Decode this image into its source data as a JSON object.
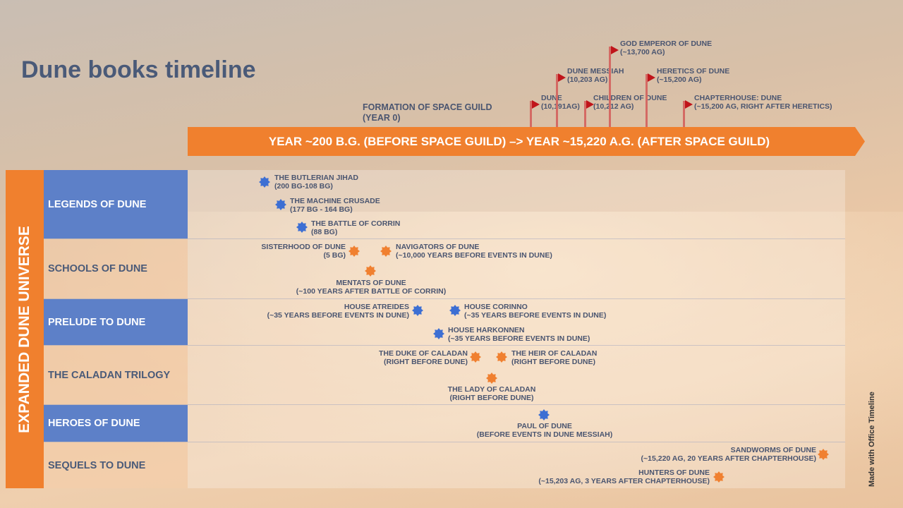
{
  "title": "Dune books timeline",
  "guild_label": [
    "FORMATION OF SPACE GUILD",
    "(YEAR 0)"
  ],
  "timeline_bar": "YEAR ~200 B.G. (BEFORE SPACE GUILD) –> YEAR ~15,220 A.G. (AFTER SPACE GUILD)",
  "flags": [
    {
      "title": "DUNE",
      "sub": "(10,191AG)"
    },
    {
      "title": "DUNE MESSIAH",
      "sub": "(10,203 AG)"
    },
    {
      "title": "CHILDREN OF DUNE",
      "sub": "(10,212 AG)"
    },
    {
      "title": "GOD EMPEROR OF DUNE",
      "sub": "(~13,700 AG)"
    },
    {
      "title": "HERETICS OF DUNE",
      "sub": "(~15,200 AG)"
    },
    {
      "title": "CHAPTERHOUSE: DUNE",
      "sub": "(~15,200 AG, RIGHT AFTER HERETICS)"
    }
  ],
  "side_label": "EXPANDED DUNE UNIVERSE",
  "lanes": [
    "LEGENDS OF DUNE",
    "SCHOOLS OF DUNE",
    "PRELUDE TO DUNE",
    "THE CALADAN TRILOGY",
    "HEROES OF DUNE",
    "SEQUELS TO DUNE"
  ],
  "milestones": [
    {
      "title": "THE BUTLERIAN JIHAD",
      "sub": "(200 BG-108 BG)"
    },
    {
      "title": "THE MACHINE CRUSADE",
      "sub": "(177 BG - 164 BG)"
    },
    {
      "title": "THE BATTLE OF CORRIN",
      "sub": "(88 BG)"
    },
    {
      "title": "SISTERHOOD OF DUNE",
      "sub": "(5 BG)"
    },
    {
      "title": "NAVIGATORS OF DUNE",
      "sub": "(~10,000 YEARS BEFORE EVENTS IN DUNE)"
    },
    {
      "title": "MENTATS OF DUNE",
      "sub": "(~100 YEARS AFTER BATTLE OF CORRIN)"
    },
    {
      "title": "HOUSE ATREIDES",
      "sub": "(~35 YEARS BEFORE EVENTS IN DUNE)"
    },
    {
      "title": "HOUSE CORINNO",
      "sub": "(~35 YEARS BEFORE EVENTS IN DUNE)"
    },
    {
      "title": "HOUSE HARKONNEN",
      "sub": "(~35 YEARS BEFORE EVENTS IN DUNE)"
    },
    {
      "title": "THE DUKE OF CALADAN",
      "sub": "(RIGHT BEFORE DUNE)"
    },
    {
      "title": "THE HEIR OF CALADAN",
      "sub": "(RIGHT BEFORE DUNE)"
    },
    {
      "title": "THE LADY OF CALADAN",
      "sub": "(RIGHT BEFORE DUNE)"
    },
    {
      "title": "PAUL OF DUNE",
      "sub": "(BEFORE EVENTS IN DUNE MESSIAH)"
    },
    {
      "title": "SANDWORMS OF DUNE",
      "sub": "(~15,220 AG, 20 YEARS AFTER CHAPTERHOUSE)"
    },
    {
      "title": "HUNTERS OF DUNE",
      "sub": "(~15,203 AG, 3 YEARS AFTER CHAPTERHOUSE)"
    }
  ],
  "colors": {
    "blue": "#3d6fd3",
    "orange": "#f08030",
    "flag": "#c0141a"
  },
  "watermark": "Made with  Office Timeline"
}
